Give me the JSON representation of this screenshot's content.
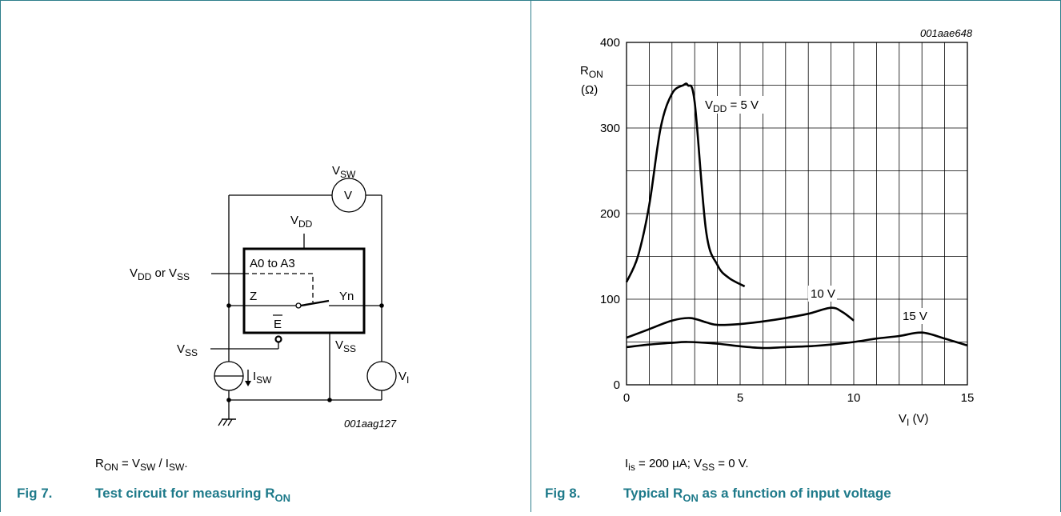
{
  "fig7": {
    "fig_no": "Fig 7.",
    "title_main": "Test circuit for measuring R",
    "title_sub": "ON",
    "code": "001aag127",
    "formula": {
      "r": "R",
      "r_sub": "ON",
      "eq": " = V",
      "sw_sub": "SW",
      "slash": " / I",
      "isw_sub": "SW",
      "end": "."
    },
    "labels": {
      "vsw_main": "V",
      "vsw_sub": "SW",
      "meter": "V",
      "vdd_main": "V",
      "vdd_sub": "DD",
      "ctrl": "A0 to A3",
      "vddorvss_a": "V",
      "vddorvss_a_sub": "DD",
      "vddorvss_mid": " or V",
      "vddorvss_b_sub": "SS",
      "z": "Z",
      "yn": "Yn",
      "e": "E",
      "vss_left_main": "V",
      "vss_left_sub": "SS",
      "vss_right_main": "V",
      "vss_right_sub": "SS",
      "isw_main": "I",
      "isw_sub": "SW",
      "vi_main": "V",
      "vi_sub": "I"
    }
  },
  "fig8": {
    "fig_no": "Fig 8.",
    "title_a": "Typical R",
    "title_sub": "ON",
    "title_b": " as a function of input voltage",
    "code": "001aae648",
    "conditions": {
      "i": "I",
      "i_sub": "is",
      "a": " = 200 µA; V",
      "v_sub": "SS",
      "b": " = 0 V."
    },
    "curve_labels": {
      "vdd5_main": "V",
      "vdd5_sub": "DD",
      "vdd5_rest": " = 5 V",
      "v10": "10 V",
      "v15": "15 V"
    }
  },
  "chart_data": {
    "type": "line",
    "xlabel": "V_I (V)",
    "ylabel": "R_ON (Ω)",
    "xlim": [
      0,
      15
    ],
    "ylim": [
      0,
      400
    ],
    "xticks": [
      "0",
      "5",
      "10",
      "15"
    ],
    "yticks": [
      "0",
      "100",
      "200",
      "300",
      "400"
    ],
    "grid": true,
    "axis_labels": {
      "y_main": "R",
      "y_sub": "ON",
      "y_unit": "(Ω)",
      "x_main": "V",
      "x_sub": "I",
      "x_unit": " (V)"
    },
    "series": [
      {
        "name": "VDD = 5 V",
        "x": [
          0,
          0.5,
          1,
          1.5,
          2,
          2.5,
          2.7,
          3,
          3.5,
          4,
          4.5,
          5.2
        ],
        "y": [
          120,
          150,
          210,
          300,
          340,
          350,
          350,
          330,
          180,
          140,
          125,
          115
        ]
      },
      {
        "name": "10 V",
        "x": [
          0,
          1,
          2,
          2.8,
          3.5,
          4,
          5,
          6,
          7,
          8,
          9,
          9.5,
          10
        ],
        "y": [
          55,
          65,
          75,
          78,
          73,
          70,
          71,
          74,
          78,
          83,
          90,
          85,
          75
        ]
      },
      {
        "name": "15 V",
        "x": [
          0,
          1,
          2,
          2.7,
          4,
          5,
          6,
          7,
          8,
          9,
          10,
          11,
          12,
          13,
          14,
          15
        ],
        "y": [
          44,
          47,
          49,
          50,
          48,
          45,
          43,
          44,
          45,
          47,
          50,
          54,
          57,
          61,
          54,
          46
        ]
      }
    ]
  }
}
